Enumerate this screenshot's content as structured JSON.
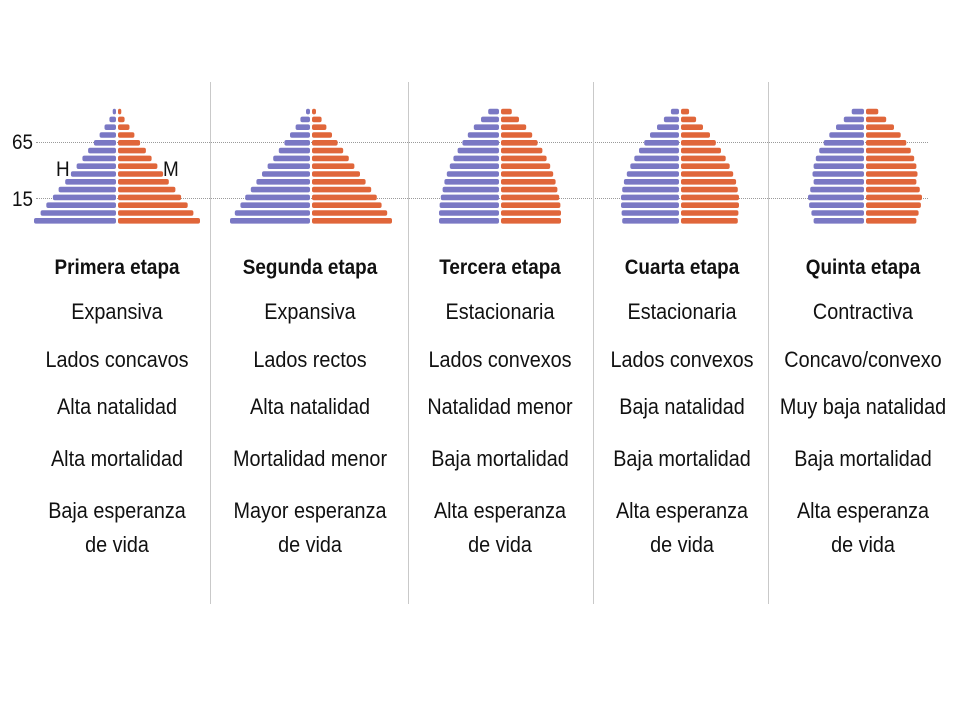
{
  "axis": {
    "age_high": "65",
    "age_low": "15",
    "left_sex": "H",
    "right_sex": "M"
  },
  "colors": {
    "male": "#7a78c4",
    "female": "#e0663a",
    "guide": "#9a9a9a",
    "divider": "#c9c9c9"
  },
  "stages": [
    {
      "title": "Primera etapa",
      "type": "Expansiva",
      "sides": "Lados concavos",
      "natality": "Alta natalidad",
      "mortality": "Alta mortalidad",
      "life_line1": "Baja esperanza",
      "life_line2": "de vida",
      "profile": [
        0.04,
        0.08,
        0.14,
        0.2,
        0.27,
        0.34,
        0.41,
        0.48,
        0.55,
        0.62,
        0.7,
        0.77,
        0.85,
        0.92,
        1.0
      ]
    },
    {
      "title": "Segunda etapa",
      "type": "Expansiva",
      "sides": "Lados rectos",
      "natality": "Alta natalidad",
      "mortality": "Mortalidad menor",
      "life_line1": "Mayor esperanza",
      "life_line2": "de vida",
      "profile": [
        0.05,
        0.12,
        0.18,
        0.25,
        0.32,
        0.39,
        0.46,
        0.53,
        0.6,
        0.67,
        0.74,
        0.81,
        0.87,
        0.94,
        1.0
      ]
    },
    {
      "title": "Tercera etapa",
      "type": "Estacionaria",
      "sides": "Lados convexos",
      "natality": "Natalidad menor",
      "mortality": "Baja mortalidad",
      "life_line1": "Alta esperanza",
      "life_line2": "de vida",
      "profile": [
        0.18,
        0.3,
        0.42,
        0.52,
        0.61,
        0.69,
        0.76,
        0.82,
        0.87,
        0.91,
        0.94,
        0.97,
        0.99,
        1.0,
        1.0
      ]
    },
    {
      "title": "Cuarta etapa",
      "type": "Estacionaria",
      "sides": "Lados convexos",
      "natality": "Baja natalidad",
      "mortality": "Baja mortalidad",
      "life_line1": "Alta esperanza",
      "life_line2": "de vida",
      "profile": [
        0.14,
        0.26,
        0.38,
        0.5,
        0.6,
        0.69,
        0.77,
        0.84,
        0.9,
        0.95,
        0.98,
        1.0,
        1.0,
        0.99,
        0.98
      ]
    },
    {
      "title": "Quinta etapa",
      "type": "Contractiva",
      "sides": "Concavo/convexo",
      "natality": "Muy baja natalidad",
      "mortality": "Baja mortalidad",
      "life_line1": "Alta esperanza",
      "life_line2": "de vida",
      "profile": [
        0.22,
        0.36,
        0.5,
        0.62,
        0.72,
        0.8,
        0.86,
        0.9,
        0.92,
        0.9,
        0.96,
        1.0,
        0.98,
        0.94,
        0.9
      ]
    }
  ]
}
